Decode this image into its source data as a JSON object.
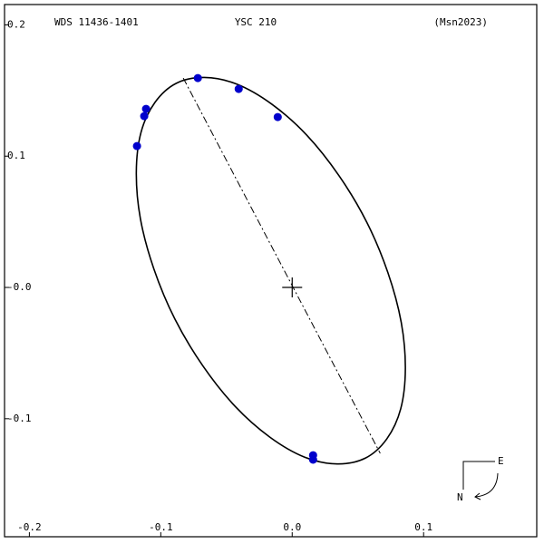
{
  "chart_data": {
    "type": "orbit",
    "title": "WDS 11436-1401",
    "subtitle": "YSC 210",
    "reference": "(Msn2023)",
    "xlim": [
      -0.2189,
      0.1861
    ],
    "ylim": [
      -0.1899,
      0.2155
    ],
    "xticks": [
      -0.2,
      -0.1,
      {
        "value": 0,
        "label": "0.0"
      },
      0.1
    ],
    "yticks": [
      {
        "value": 0.2,
        "label": "0.2"
      },
      {
        "value": 0.1,
        "label": "0.1"
      },
      {
        "value": 0,
        "label": "-0.0"
      },
      -0.1
    ],
    "orbit": {
      "color": "#000000",
      "x": [
        0.0557,
        0.0095,
        -0.0435,
        -0.0893,
        -0.1155,
        -0.1151,
        -0.0882,
        -0.042,
        0.011,
        0.0568,
        0.083,
        0.0826
      ],
      "y": [
        -0.13,
        -0.1293,
        -0.0905,
        -0.024,
        0.0523,
        0.1179,
        0.1555,
        0.1548,
        0.1161,
        0.0496,
        -0.0267,
        -0.0924
      ]
    },
    "observations": {
      "color": "#0000cc",
      "x": [
        -0.0718,
        -0.0407,
        -0.011,
        -0.1112,
        -0.1126,
        -0.1181,
        0.0159,
        0.0159
      ],
      "y": [
        0.1595,
        0.1512,
        0.1298,
        0.136,
        0.1305,
        0.1077,
        -0.1278,
        -0.1312
      ]
    },
    "node_line": {
      "x": [
        -0.0829,
        0.067
      ],
      "y": [
        0.1595,
        -0.1264
      ]
    },
    "compass": {
      "east": "E",
      "north": "N"
    }
  }
}
